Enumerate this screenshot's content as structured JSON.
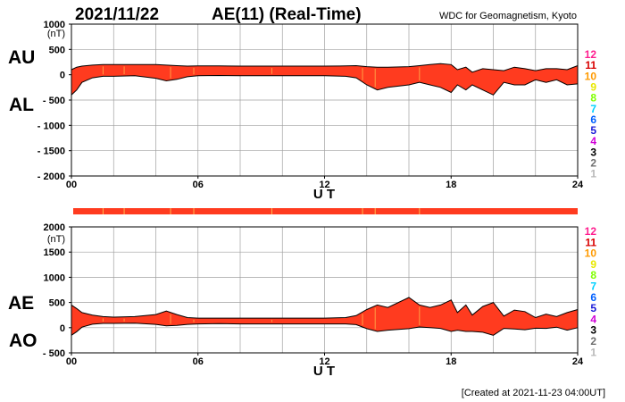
{
  "header": {
    "date": "2021/11/22",
    "title": "AE(11) (Real-Time)",
    "source": "WDC for Geomagnetism, Kyoto"
  },
  "footer": {
    "created": "[Created at 2021-11-23 04:00UT]"
  },
  "station_scale": {
    "labels": [
      "12",
      "11",
      "10",
      "9",
      "8",
      "7",
      "6",
      "5",
      "4",
      "3",
      "2",
      "1"
    ],
    "colors": [
      "#ff1f8f",
      "#d80000",
      "#ff9a00",
      "#e8e800",
      "#80ff00",
      "#00d0ff",
      "#0060ff",
      "#1a1ad8",
      "#d000d8",
      "#000000",
      "#707070",
      "#b8b8b8"
    ]
  },
  "colors": {
    "fill": "#ff3b1f",
    "outline": "#000000",
    "grid": "#a0a0a0",
    "tick_stripe": "#ffb74d"
  },
  "chart_data": [
    {
      "type": "area",
      "name": "AU/AL",
      "series_labels": {
        "upper": "AU",
        "lower": "AL"
      },
      "unit": "(nT)",
      "xlabel": "U T",
      "xlim": [
        0,
        24
      ],
      "xticks": [
        "00",
        "06",
        "12",
        "18",
        "24"
      ],
      "ylim": [
        -2000,
        1000
      ],
      "yticks": [
        "1000",
        "500",
        "0",
        "- 500",
        "- 1000",
        "- 1500",
        "- 2000"
      ],
      "grid": true,
      "x": [
        0,
        0.25,
        0.5,
        1,
        1.5,
        2,
        3,
        4,
        4.5,
        5,
        5.5,
        6,
        7,
        8,
        9,
        10,
        11,
        12,
        13,
        13.5,
        14,
        14.5,
        15,
        16,
        16.5,
        17,
        17.5,
        18,
        18.3,
        18.7,
        19,
        19.5,
        20,
        20.5,
        21,
        21.5,
        22,
        22.5,
        23,
        23.5,
        24
      ],
      "au": [
        100,
        150,
        170,
        190,
        200,
        200,
        200,
        200,
        190,
        180,
        170,
        175,
        175,
        170,
        170,
        170,
        170,
        170,
        175,
        180,
        160,
        150,
        150,
        160,
        180,
        200,
        220,
        200,
        100,
        150,
        50,
        120,
        100,
        80,
        150,
        120,
        80,
        120,
        120,
        100,
        180
      ],
      "al": [
        -400,
        -300,
        -150,
        -60,
        -30,
        -30,
        -20,
        -70,
        -120,
        -90,
        -40,
        -20,
        -15,
        -20,
        -20,
        -20,
        -20,
        -20,
        -30,
        -60,
        -200,
        -300,
        -250,
        -200,
        -150,
        -200,
        -250,
        -350,
        -200,
        -300,
        -200,
        -300,
        -400,
        -150,
        -200,
        -200,
        -100,
        -150,
        -100,
        -200,
        -180
      ]
    },
    {
      "type": "area",
      "name": "AE/AO",
      "series_labels": {
        "upper": "AE",
        "lower": "AO"
      },
      "unit": "(nT)",
      "xlabel": "U T",
      "xlim": [
        0,
        24
      ],
      "xticks": [
        "00",
        "06",
        "12",
        "18",
        "24"
      ],
      "ylim": [
        -500,
        2000
      ],
      "yticks": [
        "2000",
        "1500",
        "1000",
        "500",
        "0",
        "- 500"
      ],
      "grid": true,
      "x": [
        0,
        0.25,
        0.5,
        1,
        1.5,
        2,
        3,
        4,
        4.5,
        5,
        5.5,
        6,
        7,
        8,
        9,
        10,
        11,
        12,
        13,
        13.5,
        14,
        14.5,
        15,
        16,
        16.5,
        17,
        17.5,
        18,
        18.3,
        18.7,
        19,
        19.5,
        20,
        20.5,
        21,
        21.5,
        22,
        22.5,
        23,
        23.5,
        24
      ],
      "ae": [
        450,
        380,
        300,
        250,
        220,
        210,
        220,
        260,
        330,
        260,
        200,
        190,
        190,
        190,
        190,
        190,
        190,
        190,
        200,
        240,
        360,
        450,
        400,
        600,
        450,
        400,
        450,
        550,
        300,
        450,
        250,
        420,
        500,
        230,
        350,
        320,
        200,
        270,
        220,
        300,
        360
      ],
      "ao": [
        -150,
        -80,
        10,
        70,
        85,
        85,
        90,
        65,
        35,
        45,
        65,
        75,
        80,
        75,
        75,
        75,
        75,
        75,
        75,
        60,
        -20,
        -75,
        -50,
        -20,
        15,
        0,
        -15,
        -75,
        -50,
        -75,
        -75,
        -90,
        -150,
        -15,
        -25,
        -40,
        -10,
        -15,
        10,
        -50,
        0
      ]
    }
  ]
}
